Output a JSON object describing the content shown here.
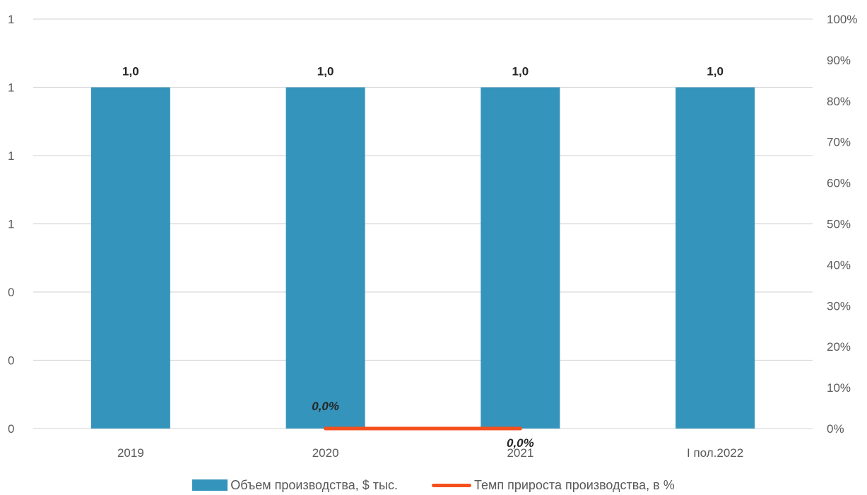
{
  "chart_data": {
    "type": "bar",
    "categories": [
      "2019",
      "2020",
      "2021",
      "I пол.2022"
    ],
    "series": [
      {
        "name": "Объем производства, $ тыс.",
        "type": "bar",
        "axis": "left",
        "values": [
          1.0,
          1.0,
          1.0,
          1.0
        ],
        "labels": [
          "1,0",
          "1,0",
          "1,0",
          "1,0"
        ],
        "color": "#3594BB"
      },
      {
        "name": "Темп прироста производства, в %",
        "type": "line",
        "axis": "right",
        "x": [
          "2020",
          "2021"
        ],
        "values": [
          0.0,
          0.0
        ],
        "labels": [
          "0,0%",
          "0,0%"
        ],
        "color": "#F4501E"
      }
    ],
    "left_axis": {
      "ylim": [
        0,
        1.2
      ],
      "tick_values": [
        0,
        0.2,
        0.4,
        0.6,
        0.8,
        1.0,
        1.2
      ],
      "tick_labels": [
        "0",
        "0",
        "0",
        "1",
        "1",
        "1",
        "1"
      ]
    },
    "right_axis": {
      "ylim": [
        0,
        1
      ],
      "tick_values": [
        0,
        0.1,
        0.2,
        0.3,
        0.4,
        0.5,
        0.6,
        0.7,
        0.8,
        0.9,
        1.0
      ],
      "tick_labels": [
        "0%",
        "10%",
        "20%",
        "30%",
        "40%",
        "50%",
        "60%",
        "70%",
        "80%",
        "90%",
        "100%"
      ]
    },
    "grid": true,
    "legend_position": "bottom",
    "gridline_color": "#D9D9D9"
  }
}
